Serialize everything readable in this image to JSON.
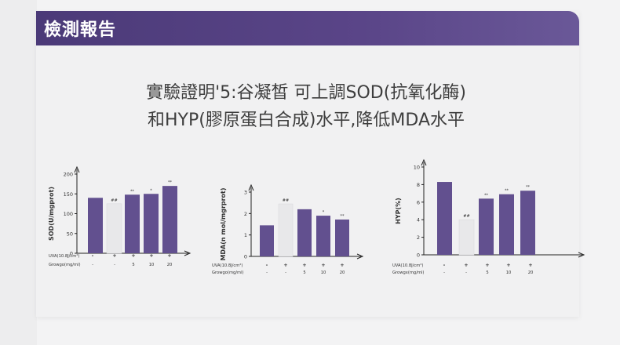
{
  "header": {
    "title": "檢測報告"
  },
  "headline": {
    "line1": "實驗證明'5:谷凝皙 可上調SOD(抗氧化酶)",
    "line2": "和HYP(膠原蛋白合成)水平,降低MDA水平"
  },
  "colors": {
    "bar": "#62508f",
    "control": "#e8e8ea",
    "header": "#55417f"
  },
  "chart_data": [
    {
      "type": "bar",
      "ylabel": "SOD(U/mgprot)",
      "ylim": [
        0,
        200
      ],
      "yticks": [
        "0",
        "50",
        "100",
        "150",
        "200"
      ],
      "values": [
        140,
        125,
        148,
        150,
        170
      ],
      "sig": [
        "",
        "##",
        "**",
        "*",
        "**"
      ],
      "row_labels": [
        "UVA(10.8J/cm²)",
        "Growgo(mg/ml)"
      ],
      "uva": [
        "-",
        "+",
        "+",
        "+",
        "+"
      ],
      "dose": [
        "-",
        "-",
        "5",
        "10",
        "20"
      ]
    },
    {
      "type": "bar",
      "ylabel": "MDA(n mol/mgrprot)",
      "ylim": [
        0,
        3
      ],
      "yticks": [
        "0",
        "1",
        "2",
        "3"
      ],
      "values": [
        1.45,
        2.45,
        2.2,
        1.9,
        1.72
      ],
      "sig": [
        "",
        "##",
        "",
        "*",
        "**"
      ],
      "row_labels": [
        "UVA(10.8J/cm²)",
        "Growgo(mg/ml)"
      ],
      "uva": [
        "-",
        "+",
        "+",
        "+",
        "+"
      ],
      "dose": [
        "-",
        "-",
        "5",
        "10",
        "20"
      ]
    },
    {
      "type": "bar",
      "ylabel": "HYP(%)",
      "ylim": [
        0,
        10
      ],
      "yticks": [
        "0",
        "2",
        "4",
        "6",
        "8",
        "10"
      ],
      "values": [
        8.3,
        4.0,
        6.4,
        6.9,
        7.3
      ],
      "sig": [
        "",
        "##",
        "**",
        "**",
        "**"
      ],
      "row_labels": [
        "UVA(10.8J/cm²)",
        "Growgx(mg/ml)"
      ],
      "uva": [
        "-",
        "+",
        "+",
        "+",
        "+"
      ],
      "dose": [
        "-",
        "-",
        "5",
        "10",
        "20"
      ]
    }
  ]
}
